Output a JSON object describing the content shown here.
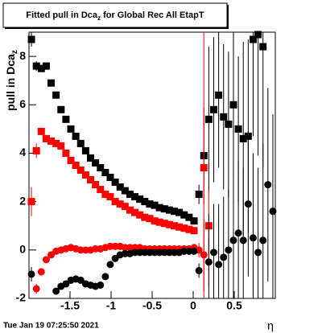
{
  "chart_data": {
    "type": "scatter",
    "title_parts": [
      "Fitted pull in Dca",
      "z",
      " for Global Rec All EtapT"
    ],
    "y_label_parts": [
      "pull in Dca",
      "z"
    ],
    "x_label": "η",
    "footer": "Tue Jan 19 07:25:50 2021",
    "xlim": [
      -2,
      1
    ],
    "ylim": [
      -2,
      9
    ],
    "xticks": [
      -1.5,
      -1,
      -0.5,
      0,
      0.5
    ],
    "yticks": [
      -2,
      0,
      2,
      4,
      6,
      8
    ],
    "x": [
      -1.97,
      -1.91,
      -1.85,
      -1.79,
      -1.73,
      -1.67,
      -1.61,
      -1.55,
      -1.49,
      -1.43,
      -1.37,
      -1.31,
      -1.25,
      -1.19,
      -1.13,
      -1.07,
      -1.01,
      -0.95,
      -0.89,
      -0.83,
      -0.77,
      -0.71,
      -0.65,
      -0.59,
      -0.53,
      -0.47,
      -0.41,
      -0.35,
      -0.29,
      -0.23,
      -0.17,
      -0.11,
      -0.05,
      0.01,
      0.07,
      0.13,
      0.19,
      0.25,
      0.31,
      0.37,
      0.43,
      0.49,
      0.55,
      0.61,
      0.67,
      0.73,
      0.79,
      0.85,
      0.91,
      0.97
    ],
    "series": [
      {
        "color": "#000000",
        "marker": "square",
        "values": [
          8.7,
          7.6,
          7.5,
          7.6,
          6.9,
          6.4,
          5.8,
          5.4,
          5.0,
          4.7,
          4.4,
          4.1,
          3.8,
          3.6,
          3.4,
          3.2,
          3.0,
          2.8,
          2.6,
          2.45,
          2.3,
          2.2,
          2.1,
          2.0,
          1.9,
          1.85,
          1.75,
          1.7,
          1.65,
          1.6,
          1.55,
          1.45,
          1.35,
          1.2,
          2.3,
          3.9,
          5.4,
          5.8,
          6.4,
          5.5,
          5.2,
          6.0,
          5.0,
          4.6,
          4.7,
          8.7,
          8.9,
          8.4,
          null,
          null
        ],
        "errors": [
          0.3,
          0.2,
          0.15,
          0.15,
          0.1,
          0.1,
          0.1,
          0.1,
          0.1,
          0.1,
          0.1,
          0.1,
          0.1,
          0.1,
          0.1,
          0.1,
          0.1,
          0.1,
          0.1,
          0.1,
          0.1,
          0.1,
          0.1,
          0.1,
          0.1,
          0.1,
          0.1,
          0.1,
          0.1,
          0.1,
          0.1,
          0.1,
          0.1,
          0.1,
          0.4,
          2,
          3,
          3,
          3,
          3,
          3,
          3,
          3,
          4,
          4,
          4,
          5,
          5,
          null,
          null
        ]
      },
      {
        "color": "#ff0000",
        "marker": "square",
        "values": [
          2.0,
          4.1,
          4.9,
          4.6,
          4.5,
          4.4,
          4.3,
          4.0,
          3.7,
          3.5,
          3.3,
          3.1,
          2.9,
          2.7,
          2.5,
          2.3,
          2.2,
          2.0,
          1.9,
          1.8,
          1.65,
          1.55,
          1.45,
          1.35,
          1.3,
          1.2,
          1.15,
          1.1,
          1.05,
          1.0,
          0.95,
          0.9,
          0.85,
          0.8,
          null,
          3.4,
          1.0,
          null,
          null,
          null,
          null,
          null,
          null,
          null,
          null,
          null,
          null,
          null,
          null,
          null
        ],
        "errors": [
          0.6,
          0.3,
          0.15,
          0.1,
          0.1,
          0.1,
          0.1,
          0.1,
          0.1,
          0.1,
          0.1,
          0.1,
          0.1,
          0.1,
          0.1,
          0.1,
          0.1,
          0.1,
          0.1,
          0.1,
          0.1,
          0.1,
          0.1,
          0.1,
          0.1,
          0.1,
          0.1,
          0.1,
          0.1,
          0.1,
          0.1,
          0.1,
          0.1,
          0.1,
          null,
          5.6,
          1.5,
          null,
          null,
          null,
          null,
          null,
          null,
          null,
          null,
          null,
          null,
          null,
          null,
          null
        ]
      },
      {
        "color": "#ff0000",
        "marker": "circle",
        "values": [
          null,
          -1.6,
          -0.9,
          -0.4,
          -0.2,
          -0.05,
          0.0,
          0.05,
          0.1,
          0.05,
          0.0,
          0.0,
          0.0,
          0.05,
          0.05,
          0.1,
          0.15,
          0.15,
          0.15,
          0.1,
          0.1,
          0.1,
          0.1,
          0.05,
          0.05,
          0.05,
          0.05,
          0.05,
          0.05,
          0.05,
          0.05,
          0.05,
          0.05,
          0.1,
          0.0,
          -0.2,
          -0.5,
          null,
          null,
          null,
          null,
          null,
          null,
          null,
          null,
          null,
          null,
          null,
          null,
          null
        ],
        "errors": [
          null,
          0.2,
          0.15,
          0.1,
          0.1,
          0.1,
          0.1,
          0.1,
          0.1,
          0.1,
          0.1,
          0.1,
          0.1,
          0.1,
          0.1,
          0.1,
          0.1,
          0.1,
          0.1,
          0.1,
          0.1,
          0.1,
          0.1,
          0.1,
          0.1,
          0.1,
          0.1,
          0.1,
          0.1,
          0.1,
          0.1,
          0.1,
          0.1,
          0.1,
          0.3,
          1.5,
          1.0,
          null,
          null,
          null,
          null,
          null,
          null,
          null,
          null,
          null,
          null,
          null,
          null,
          null
        ]
      },
      {
        "color": "#000000",
        "marker": "circle",
        "values": [
          -1.0,
          null,
          null,
          null,
          null,
          -1.7,
          -1.5,
          -1.4,
          -1.25,
          -1.2,
          -1.25,
          -1.4,
          -1.45,
          -1.5,
          -1.45,
          -1.1,
          -0.6,
          -0.35,
          -0.2,
          -0.15,
          -0.15,
          -0.1,
          -0.1,
          -0.1,
          -0.1,
          -0.1,
          -0.1,
          -0.1,
          -0.1,
          -0.1,
          -0.1,
          -0.05,
          -0.05,
          -0.05,
          -0.85,
          null,
          -0.5,
          -0.1,
          -0.6,
          -0.3,
          0.0,
          0.4,
          0.7,
          0.4,
          1.9,
          0.5,
          -0.1,
          0.4,
          2.7,
          1.6
        ],
        "errors": [
          0.3,
          null,
          null,
          null,
          null,
          0.1,
          0.1,
          0.1,
          0.1,
          0.1,
          0.1,
          0.1,
          0.1,
          0.1,
          0.1,
          0.1,
          0.1,
          0.1,
          0.1,
          0.1,
          0.1,
          0.1,
          0.1,
          0.1,
          0.1,
          0.1,
          0.1,
          0.1,
          0.1,
          0.1,
          0.1,
          0.1,
          0.1,
          0.1,
          0.3,
          null,
          2,
          2,
          2.5,
          2.5,
          2.5,
          3,
          3,
          3,
          3,
          3.5,
          3.5,
          4,
          4,
          4
        ]
      }
    ]
  }
}
